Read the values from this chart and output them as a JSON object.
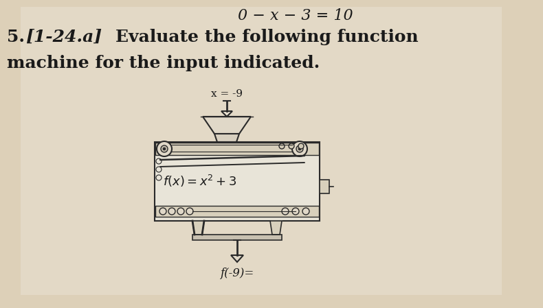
{
  "bg_color": "#c8b99a",
  "paper_color": "#e8dece",
  "top_equation": "0 − x − 3 = 10",
  "problem_number": "5.",
  "bracket_label": "[1-24.a]",
  "instruction_line1": "Evaluate the following function",
  "instruction_line2": "machine for the input indicated.",
  "input_label": "x = -9",
  "output_label": "f(-9)=",
  "line_color": "#1a1a1a",
  "sketch_color": "#2a2a2a",
  "machine_fill": "#f0ece0",
  "belt_color": "#c0b898",
  "dark_line": "#333333"
}
